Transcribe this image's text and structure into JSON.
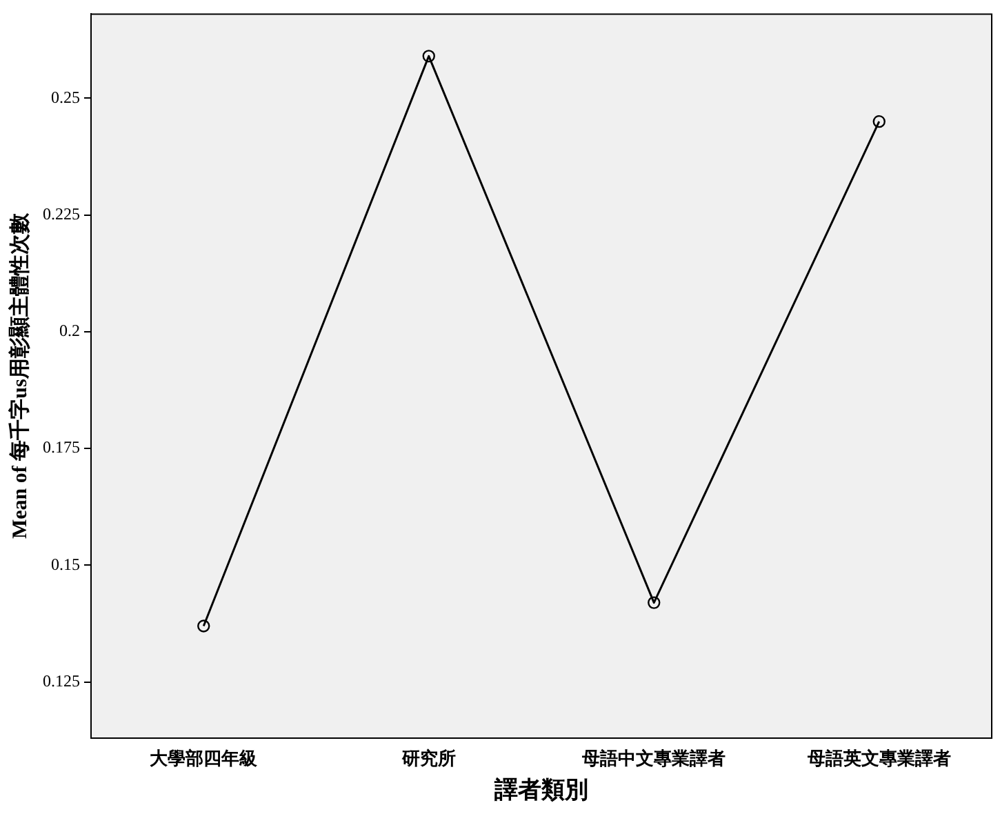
{
  "chart_data": {
    "type": "line",
    "xlabel": "譯者類別",
    "ylabel": "Mean of 每千字us用彰顯主體性次數",
    "categories": [
      "大學部四年級",
      "研究所",
      "母語中文專業譯者",
      "母語英文專業譯者"
    ],
    "series": [
      {
        "color": "#000000",
        "values": [
          0.137,
          0.259,
          0.142,
          0.245
        ]
      }
    ],
    "ylim": [
      0.113,
      0.268
    ],
    "yticks": [
      {
        "value": 0.125,
        "label": "0.125"
      },
      {
        "value": 0.15,
        "label": "0.15"
      },
      {
        "value": 0.175,
        "label": "0.175"
      },
      {
        "value": 0.2,
        "label": "0.2"
      },
      {
        "value": 0.225,
        "label": "0.225"
      },
      {
        "value": 0.25,
        "label": "0.25"
      }
    ],
    "grid": false,
    "legend": false,
    "marker": "circle",
    "line_style": "solid"
  }
}
